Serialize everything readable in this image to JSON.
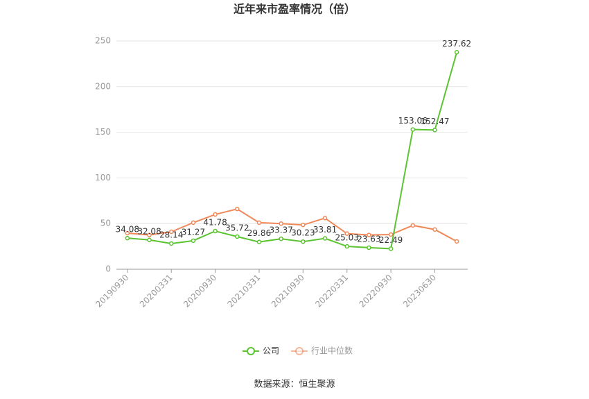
{
  "chart_data": {
    "type": "line",
    "title": "近年来市盈率情况（倍）",
    "categories": [
      "20190930",
      null,
      "20200331",
      null,
      "20200930",
      null,
      "20210331",
      null,
      "20210930",
      null,
      "20220331",
      null,
      "20220930",
      null,
      "20230630",
      null
    ],
    "series": [
      {
        "name": "公司",
        "color": "#5cc331",
        "values": [
          34.08,
          32.08,
          28.14,
          31.27,
          41.78,
          35.72,
          29.86,
          33.37,
          30.23,
          33.81,
          25.03,
          23.63,
          22.49,
          153.06,
          152.47,
          237.62
        ]
      },
      {
        "name": "行业中位数",
        "color": "#f0895a",
        "values": [
          39.5,
          37.5,
          41,
          51,
          60,
          66,
          51,
          50,
          48.5,
          56,
          39,
          37.5,
          38,
          48,
          43.5,
          30.5
        ]
      }
    ],
    "ylim": [
      0,
      250
    ],
    "yticks": [
      0,
      50,
      100,
      150,
      200,
      250
    ],
    "grid": true,
    "source": "数据来源：恒生聚源"
  }
}
